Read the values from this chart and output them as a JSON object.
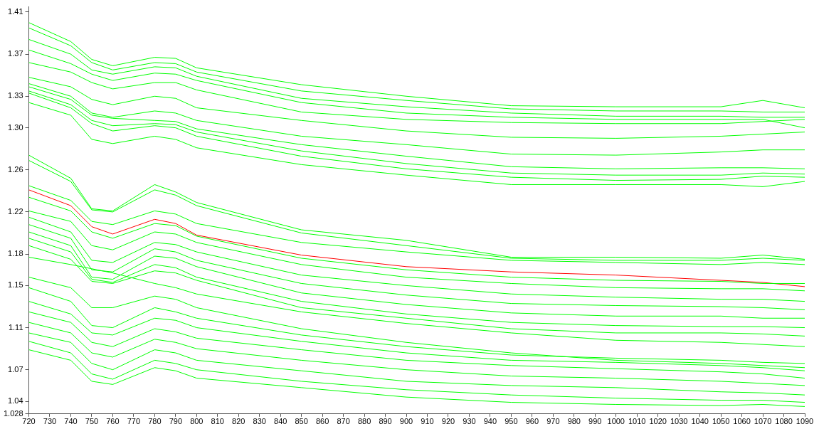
{
  "chart_data": {
    "type": "line",
    "x": [
      720,
      740,
      750,
      760,
      780,
      790,
      800,
      850,
      900,
      950,
      1000,
      1050,
      1070,
      1090
    ],
    "xlim": [
      720,
      1090
    ],
    "xticks": [
      720,
      730,
      740,
      750,
      760,
      770,
      780,
      790,
      800,
      810,
      820,
      830,
      840,
      850,
      860,
      870,
      880,
      890,
      900,
      910,
      920,
      930,
      940,
      950,
      960,
      970,
      980,
      990,
      1000,
      1010,
      1020,
      1030,
      1040,
      1050,
      1060,
      1070,
      1080,
      1090
    ],
    "ylim": [
      1.028,
      1.415
    ],
    "yticks": [
      1.028,
      1.04,
      1.07,
      1.11,
      1.15,
      1.18,
      1.22,
      1.26,
      {
        "value": 1.3,
        "label": "1.30"
      },
      1.33,
      1.37,
      1.41
    ],
    "grid": false,
    "legend": false,
    "marker": "none",
    "series": [
      {
        "color": "#00ff00",
        "values": [
          1.4,
          1.382,
          1.365,
          1.359,
          1.367,
          1.366,
          1.357,
          1.341,
          1.33,
          1.321,
          1.32,
          1.32,
          1.326,
          1.319
        ]
      },
      {
        "color": "#00ff00",
        "values": [
          1.395,
          1.378,
          1.362,
          1.355,
          1.362,
          1.361,
          1.353,
          1.335,
          1.326,
          1.318,
          1.316,
          1.316,
          1.315,
          1.315
        ]
      },
      {
        "color": "#00ff00",
        "values": [
          1.384,
          1.37,
          1.355,
          1.351,
          1.358,
          1.357,
          1.349,
          1.328,
          1.32,
          1.314,
          1.311,
          1.311,
          1.31,
          1.31
        ]
      },
      {
        "color": "#00ff00",
        "values": [
          1.374,
          1.361,
          1.351,
          1.345,
          1.352,
          1.351,
          1.345,
          1.324,
          1.314,
          1.31,
          1.308,
          1.308,
          1.308,
          1.3
        ]
      },
      {
        "color": "#00ff00",
        "values": [
          1.362,
          1.353,
          1.343,
          1.337,
          1.343,
          1.343,
          1.336,
          1.315,
          1.308,
          1.305,
          1.304,
          1.304,
          1.306,
          1.308
        ]
      },
      {
        "color": "#00ff00",
        "values": [
          1.348,
          1.339,
          1.327,
          1.322,
          1.33,
          1.328,
          1.319,
          1.307,
          1.297,
          1.291,
          1.29,
          1.292,
          1.294,
          1.296
        ]
      },
      {
        "color": "#00ff00",
        "values": [
          1.342,
          1.33,
          1.314,
          1.31,
          1.316,
          1.314,
          1.307,
          1.292,
          1.284,
          1.275,
          1.274,
          1.277,
          1.279,
          1.279
        ]
      },
      {
        "color": "#00ff00",
        "values": [
          1.339,
          1.327,
          1.312,
          1.309,
          1.307,
          1.306,
          1.299,
          1.284,
          1.273,
          1.263,
          1.261,
          1.262,
          1.262,
          1.261
        ]
      },
      {
        "color": "#00ff00",
        "values": [
          1.335,
          1.322,
          1.307,
          1.302,
          1.304,
          1.303,
          1.296,
          1.278,
          1.266,
          1.257,
          1.255,
          1.255,
          1.257,
          1.256
        ]
      },
      {
        "color": "#00ff00",
        "values": [
          1.333,
          1.319,
          1.304,
          1.297,
          1.302,
          1.3,
          1.292,
          1.273,
          1.261,
          1.253,
          1.25,
          1.251,
          1.254,
          1.253
        ]
      },
      {
        "color": "#00ff00",
        "values": [
          1.324,
          1.312,
          1.289,
          1.285,
          1.292,
          1.289,
          1.281,
          1.265,
          1.255,
          1.246,
          1.246,
          1.246,
          1.244,
          1.249
        ]
      },
      {
        "color": "#00ff00",
        "values": [
          1.274,
          1.252,
          1.223,
          1.221,
          1.246,
          1.239,
          1.229,
          1.203,
          1.193,
          1.177,
          1.177,
          1.176,
          1.179,
          1.175
        ]
      },
      {
        "color": "#00ff00",
        "values": [
          1.269,
          1.249,
          1.222,
          1.22,
          1.241,
          1.236,
          1.226,
          1.2,
          1.188,
          1.176,
          1.174,
          1.174,
          1.176,
          1.174
        ]
      },
      {
        "color": "#00ff00",
        "values": [
          1.245,
          1.231,
          1.211,
          1.208,
          1.221,
          1.218,
          1.209,
          1.191,
          1.182,
          1.174,
          1.172,
          1.17,
          1.172,
          1.17
        ]
      },
      {
        "color": "#00ff00",
        "values": [
          1.234,
          1.221,
          1.201,
          1.195,
          1.209,
          1.207,
          1.197,
          1.176,
          1.165,
          1.158,
          1.155,
          1.154,
          1.152,
          1.152
        ]
      },
      {
        "color": "#00ff00",
        "values": [
          1.221,
          1.211,
          1.188,
          1.184,
          1.201,
          1.199,
          1.191,
          1.17,
          1.158,
          1.152,
          1.148,
          1.147,
          1.147,
          1.145
        ]
      },
      {
        "color": "#00ff00",
        "values": [
          1.215,
          1.201,
          1.174,
          1.172,
          1.191,
          1.189,
          1.182,
          1.16,
          1.15,
          1.142,
          1.139,
          1.137,
          1.137,
          1.135
        ]
      },
      {
        "color": "#00ff00",
        "values": [
          1.208,
          1.195,
          1.165,
          1.163,
          1.185,
          1.182,
          1.174,
          1.152,
          1.141,
          1.133,
          1.131,
          1.13,
          1.129,
          1.127
        ]
      },
      {
        "color": "#00ff00",
        "values": [
          1.201,
          1.188,
          1.158,
          1.156,
          1.178,
          1.176,
          1.168,
          1.143,
          1.132,
          1.124,
          1.121,
          1.121,
          1.119,
          1.119
        ]
      },
      {
        "color": "#00ff00",
        "values": [
          1.195,
          1.182,
          1.156,
          1.153,
          1.17,
          1.167,
          1.158,
          1.135,
          1.123,
          1.115,
          1.112,
          1.111,
          1.111,
          1.11
        ]
      },
      {
        "color": "#00ff00",
        "values": [
          1.188,
          1.175,
          1.154,
          1.152,
          1.164,
          1.162,
          1.155,
          1.129,
          1.119,
          1.109,
          1.105,
          1.105,
          1.104,
          1.102
        ]
      },
      {
        "color": "#00ff00",
        "values": [
          1.177,
          1.17,
          1.166,
          1.162,
          1.152,
          1.148,
          1.142,
          1.125,
          1.114,
          1.105,
          1.098,
          1.096,
          1.094,
          1.092
        ]
      },
      {
        "color": "#00ff00",
        "values": [
          1.158,
          1.148,
          1.129,
          1.129,
          1.14,
          1.137,
          1.129,
          1.109,
          1.096,
          1.086,
          1.079,
          1.076,
          1.074,
          1.072
        ]
      },
      {
        "color": "#00ff00",
        "values": [
          1.148,
          1.135,
          1.112,
          1.11,
          1.129,
          1.125,
          1.119,
          1.103,
          1.092,
          1.084,
          1.081,
          1.079,
          1.077,
          1.076
        ]
      },
      {
        "color": "#00ff00",
        "values": [
          1.135,
          1.123,
          1.105,
          1.103,
          1.119,
          1.117,
          1.11,
          1.097,
          1.086,
          1.079,
          1.077,
          1.074,
          1.072,
          1.069
        ]
      },
      {
        "color": "#00ff00",
        "values": [
          1.125,
          1.115,
          1.096,
          1.092,
          1.109,
          1.106,
          1.1,
          1.089,
          1.079,
          1.074,
          1.071,
          1.068,
          1.066,
          1.062
        ]
      },
      {
        "color": "#00ff00",
        "values": [
          1.115,
          1.105,
          1.086,
          1.082,
          1.099,
          1.096,
          1.09,
          1.079,
          1.07,
          1.064,
          1.062,
          1.059,
          1.057,
          1.055
        ]
      },
      {
        "color": "#00ff00",
        "values": [
          1.105,
          1.096,
          1.076,
          1.07,
          1.089,
          1.086,
          1.079,
          1.069,
          1.059,
          1.055,
          1.053,
          1.049,
          1.048,
          1.046
        ]
      },
      {
        "color": "#00ff00",
        "values": [
          1.097,
          1.086,
          1.066,
          1.061,
          1.079,
          1.076,
          1.07,
          1.059,
          1.051,
          1.046,
          1.043,
          1.041,
          1.041,
          1.039
        ]
      },
      {
        "color": "#00ff00",
        "values": [
          1.089,
          1.079,
          1.059,
          1.056,
          1.072,
          1.069,
          1.062,
          1.053,
          1.044,
          1.039,
          1.037,
          1.036,
          1.037,
          1.035
        ]
      },
      {
        "color": "#ff0000",
        "values": [
          1.241,
          1.226,
          1.206,
          1.199,
          1.213,
          1.209,
          1.198,
          1.179,
          1.168,
          1.163,
          1.16,
          1.155,
          1.153,
          1.149
        ]
      }
    ]
  }
}
